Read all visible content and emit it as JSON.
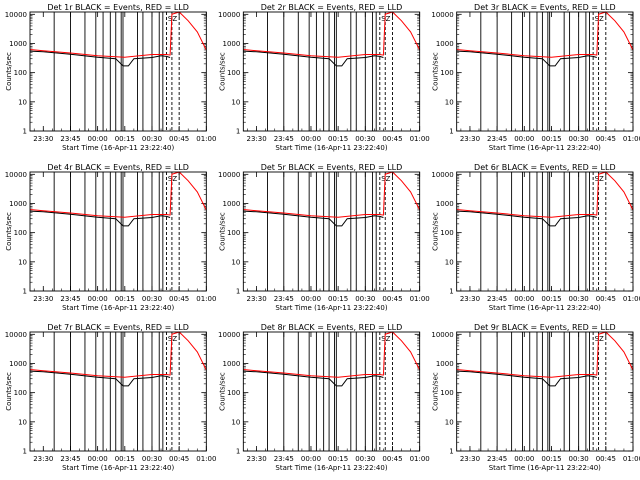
{
  "chart_data": [
    {
      "type": "line",
      "title": "Det 1r BLACK = Events, RED = LLD",
      "xlabel": "Start Time (16-Apr-11 23:22:40)",
      "ylabel": "Counts/sec",
      "xticks": [
        "23:30",
        "23:45",
        "00:00",
        "00:15",
        "00:30",
        "00:45",
        "01:00"
      ],
      "yticks": [
        "1",
        "10",
        "100",
        "1000",
        "10000"
      ],
      "ylim": [
        1,
        12000
      ],
      "yscale": "log",
      "series": [
        {
          "name": "BLACK",
          "color": "#000000",
          "x": [
            "23:22:40",
            "23:30",
            "23:45",
            "00:00",
            "00:10",
            "00:14",
            "00:17",
            "00:20",
            "00:30",
            "00:35",
            "00:38",
            "00:40"
          ],
          "y": [
            550,
            520,
            430,
            340,
            300,
            170,
            170,
            300,
            330,
            380,
            360,
            330
          ]
        },
        {
          "name": "RED",
          "color": "#ff0000",
          "x": [
            "23:22:40",
            "23:30",
            "23:45",
            "00:00",
            "00:15",
            "00:30",
            "00:38",
            "00:40",
            "00:41",
            "00:45",
            "00:50",
            "00:55",
            "01:00"
          ],
          "y": [
            620,
            560,
            470,
            380,
            340,
            420,
            420,
            400,
            10000,
            12000,
            6000,
            2500,
            600
          ]
        }
      ]
    },
    {
      "type": "line",
      "title": "Det 2r BLACK = Events, RED = LLD",
      "xlabel": "Start Time (16-Apr-11 23:22:40)",
      "ylabel": "Counts/sec",
      "xticks": [
        "23:30",
        "23:45",
        "00:00",
        "00:15",
        "00:30",
        "00:45",
        "01:00"
      ],
      "yticks": [
        "1",
        "10",
        "100",
        "1000",
        "10000"
      ],
      "ylim": [
        1,
        12000
      ],
      "yscale": "log",
      "series": [
        {
          "name": "BLACK",
          "color": "#000000",
          "x": [
            "23:22:40",
            "23:30",
            "23:45",
            "00:00",
            "00:10",
            "00:14",
            "00:17",
            "00:20",
            "00:30",
            "00:35",
            "00:38",
            "00:40"
          ],
          "y": [
            550,
            520,
            430,
            340,
            300,
            170,
            170,
            300,
            330,
            380,
            360,
            330
          ]
        },
        {
          "name": "RED",
          "color": "#ff0000",
          "x": [
            "23:22:40",
            "23:30",
            "23:45",
            "00:00",
            "00:15",
            "00:30",
            "00:38",
            "00:40",
            "00:41",
            "00:45",
            "00:50",
            "00:55",
            "01:00"
          ],
          "y": [
            620,
            560,
            470,
            380,
            340,
            420,
            420,
            400,
            10000,
            12000,
            6000,
            2500,
            600
          ]
        }
      ]
    },
    {
      "type": "line",
      "title": "Det 3r BLACK = Events, RED = LLD",
      "xlabel": "Start Time (16-Apr-11 23:22:40)",
      "ylabel": "Counts/sec",
      "xticks": [
        "23:30",
        "23:45",
        "00:00",
        "00:15",
        "00:30",
        "00:45",
        "01:00"
      ],
      "yticks": [
        "1",
        "10",
        "100",
        "1000",
        "10000"
      ],
      "ylim": [
        1,
        12000
      ],
      "yscale": "log",
      "series": [
        {
          "name": "BLACK",
          "color": "#000000",
          "x": [
            "23:22:40",
            "23:30",
            "23:45",
            "00:00",
            "00:10",
            "00:14",
            "00:17",
            "00:20",
            "00:30",
            "00:35",
            "00:38",
            "00:40"
          ],
          "y": [
            550,
            520,
            430,
            340,
            300,
            170,
            170,
            300,
            330,
            380,
            360,
            330
          ]
        },
        {
          "name": "RED",
          "color": "#ff0000",
          "x": [
            "23:22:40",
            "23:30",
            "23:45",
            "00:00",
            "00:15",
            "00:30",
            "00:38",
            "00:40",
            "00:41",
            "00:45",
            "00:50",
            "00:55",
            "01:00"
          ],
          "y": [
            620,
            560,
            470,
            380,
            340,
            420,
            420,
            400,
            10000,
            12000,
            6000,
            2500,
            600
          ]
        }
      ]
    },
    {
      "type": "line",
      "title": "Det 4r BLACK = Events, RED = LLD",
      "xlabel": "Start Time (16-Apr-11 23:22:40)",
      "ylabel": "Counts/sec",
      "xticks": [
        "23:30",
        "23:45",
        "00:00",
        "00:15",
        "00:30",
        "00:45",
        "01:00"
      ],
      "yticks": [
        "1",
        "10",
        "100",
        "1000",
        "10000"
      ],
      "ylim": [
        1,
        12000
      ],
      "yscale": "log",
      "series": [
        {
          "name": "BLACK",
          "color": "#000000",
          "x": [
            "23:22:40",
            "23:30",
            "23:45",
            "00:00",
            "00:10",
            "00:14",
            "00:17",
            "00:20",
            "00:30",
            "00:35",
            "00:38",
            "00:40"
          ],
          "y": [
            550,
            520,
            430,
            340,
            300,
            170,
            170,
            300,
            330,
            380,
            360,
            330
          ]
        },
        {
          "name": "RED",
          "color": "#ff0000",
          "x": [
            "23:22:40",
            "23:30",
            "23:45",
            "00:00",
            "00:15",
            "00:30",
            "00:38",
            "00:40",
            "00:41",
            "00:45",
            "00:50",
            "00:55",
            "01:00"
          ],
          "y": [
            620,
            560,
            470,
            380,
            340,
            420,
            420,
            400,
            10000,
            12000,
            6000,
            2500,
            600
          ]
        }
      ]
    },
    {
      "type": "line",
      "title": "Det 5r BLACK = Events, RED = LLD",
      "xlabel": "Start Time (16-Apr-11 23:22:40)",
      "ylabel": "Counts/sec",
      "xticks": [
        "23:30",
        "23:45",
        "00:00",
        "00:15",
        "00:30",
        "00:45",
        "01:00"
      ],
      "yticks": [
        "1",
        "10",
        "100",
        "1000",
        "10000"
      ],
      "ylim": [
        1,
        12000
      ],
      "yscale": "log",
      "series": [
        {
          "name": "BLACK",
          "color": "#000000",
          "x": [
            "23:22:40",
            "23:30",
            "23:45",
            "00:00",
            "00:10",
            "00:14",
            "00:17",
            "00:20",
            "00:30",
            "00:35",
            "00:38",
            "00:40"
          ],
          "y": [
            550,
            520,
            430,
            340,
            300,
            170,
            170,
            300,
            330,
            380,
            360,
            330
          ]
        },
        {
          "name": "RED",
          "color": "#ff0000",
          "x": [
            "23:22:40",
            "23:30",
            "23:45",
            "00:00",
            "00:15",
            "00:30",
            "00:38",
            "00:40",
            "00:41",
            "00:45",
            "00:50",
            "00:55",
            "01:00"
          ],
          "y": [
            620,
            560,
            470,
            380,
            340,
            420,
            420,
            400,
            10000,
            12000,
            6000,
            2500,
            600
          ]
        }
      ]
    },
    {
      "type": "line",
      "title": "Det 6r BLACK = Events, RED = LLD",
      "xlabel": "Start Time (16-Apr-11 23:22:40)",
      "ylabel": "Counts/sec",
      "xticks": [
        "23:30",
        "23:45",
        "00:00",
        "00:15",
        "00:30",
        "00:45",
        "01:00"
      ],
      "yticks": [
        "1",
        "10",
        "100",
        "1000",
        "10000"
      ],
      "ylim": [
        1,
        12000
      ],
      "yscale": "log",
      "series": [
        {
          "name": "BLACK",
          "color": "#000000",
          "x": [
            "23:22:40",
            "23:30",
            "23:45",
            "00:00",
            "00:10",
            "00:14",
            "00:17",
            "00:20",
            "00:30",
            "00:35",
            "00:38",
            "00:40"
          ],
          "y": [
            550,
            520,
            430,
            340,
            300,
            170,
            170,
            300,
            330,
            380,
            360,
            330
          ]
        },
        {
          "name": "RED",
          "color": "#ff0000",
          "x": [
            "23:22:40",
            "23:30",
            "23:45",
            "00:00",
            "00:15",
            "00:30",
            "00:38",
            "00:40",
            "00:41",
            "00:45",
            "00:50",
            "00:55",
            "01:00"
          ],
          "y": [
            620,
            560,
            470,
            380,
            340,
            420,
            420,
            400,
            10000,
            12000,
            6000,
            2500,
            600
          ]
        }
      ]
    },
    {
      "type": "line",
      "title": "Det 7r BLACK = Events, RED = LLD",
      "xlabel": "Start Time (16-Apr-11 23:22:40)",
      "ylabel": "Counts/sec",
      "xticks": [
        "23:30",
        "23:45",
        "00:00",
        "00:15",
        "00:30",
        "00:45",
        "01:00"
      ],
      "yticks": [
        "1",
        "10",
        "100",
        "1000",
        "10000"
      ],
      "ylim": [
        1,
        12000
      ],
      "yscale": "log",
      "series": [
        {
          "name": "BLACK",
          "color": "#000000",
          "x": [
            "23:22:40",
            "23:30",
            "23:45",
            "00:00",
            "00:10",
            "00:14",
            "00:17",
            "00:20",
            "00:30",
            "00:35",
            "00:38",
            "00:40"
          ],
          "y": [
            550,
            520,
            430,
            340,
            300,
            170,
            170,
            300,
            330,
            380,
            360,
            330
          ]
        },
        {
          "name": "RED",
          "color": "#ff0000",
          "x": [
            "23:22:40",
            "23:30",
            "23:45",
            "00:00",
            "00:15",
            "00:30",
            "00:38",
            "00:40",
            "00:41",
            "00:45",
            "00:50",
            "00:55",
            "01:00"
          ],
          "y": [
            620,
            560,
            470,
            380,
            340,
            420,
            420,
            400,
            10000,
            12000,
            6000,
            2500,
            600
          ]
        }
      ]
    },
    {
      "type": "line",
      "title": "Det 8r BLACK = Events, RED = LLD",
      "xlabel": "Start Time (16-Apr-11 23:22:40)",
      "ylabel": "Counts/sec",
      "xticks": [
        "23:30",
        "23:45",
        "00:00",
        "00:15",
        "00:30",
        "00:45",
        "01:00"
      ],
      "yticks": [
        "1",
        "10",
        "100",
        "1000",
        "10000"
      ],
      "ylim": [
        1,
        12000
      ],
      "yscale": "log",
      "series": [
        {
          "name": "BLACK",
          "color": "#000000",
          "x": [
            "23:22:40",
            "23:30",
            "23:45",
            "00:00",
            "00:10",
            "00:14",
            "00:17",
            "00:20",
            "00:30",
            "00:35",
            "00:38",
            "00:40"
          ],
          "y": [
            550,
            520,
            430,
            340,
            300,
            170,
            170,
            300,
            330,
            380,
            360,
            330
          ]
        },
        {
          "name": "RED",
          "color": "#ff0000",
          "x": [
            "23:22:40",
            "23:30",
            "23:45",
            "00:00",
            "00:15",
            "00:30",
            "00:38",
            "00:40",
            "00:41",
            "00:45",
            "00:50",
            "00:55",
            "01:00"
          ],
          "y": [
            620,
            560,
            470,
            380,
            340,
            420,
            420,
            400,
            10000,
            12000,
            6000,
            2500,
            600
          ]
        }
      ]
    },
    {
      "type": "line",
      "title": "Det 9r BLACK = Events, RED = LLD",
      "xlabel": "Start Time (16-Apr-11 23:22:40)",
      "ylabel": "Counts/sec",
      "xticks": [
        "23:30",
        "23:45",
        "00:00",
        "00:15",
        "00:30",
        "00:45",
        "01:00"
      ],
      "yticks": [
        "1",
        "10",
        "100",
        "1000",
        "10000"
      ],
      "ylim": [
        1,
        12000
      ],
      "yscale": "log",
      "series": [
        {
          "name": "BLACK",
          "color": "#000000",
          "x": [
            "23:22:40",
            "23:30",
            "23:45",
            "00:00",
            "00:10",
            "00:14",
            "00:17",
            "00:20",
            "00:30",
            "00:35",
            "00:38",
            "00:40"
          ],
          "y": [
            550,
            520,
            430,
            340,
            300,
            170,
            170,
            300,
            330,
            380,
            360,
            330
          ]
        },
        {
          "name": "RED",
          "color": "#ff0000",
          "x": [
            "23:22:40",
            "23:30",
            "23:45",
            "00:00",
            "00:15",
            "00:30",
            "00:38",
            "00:40",
            "00:41",
            "00:45",
            "00:50",
            "00:55",
            "01:00"
          ],
          "y": [
            620,
            560,
            470,
            380,
            340,
            420,
            420,
            400,
            10000,
            12000,
            6000,
            2500,
            600
          ]
        }
      ]
    }
  ],
  "markers": {
    "label": "SZ",
    "solid_times": [
      "23:36",
      "23:45",
      "23:53",
      "23:59",
      "00:03",
      "00:07",
      "00:10",
      "00:13",
      "00:14",
      "00:22",
      "00:25",
      "00:30",
      "00:34",
      "00:36"
    ],
    "dashed_times": [
      "00:38",
      "00:41",
      "00:45"
    ]
  }
}
